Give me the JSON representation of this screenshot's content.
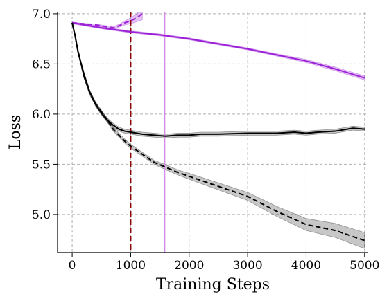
{
  "chart_data": {
    "type": "line",
    "xlabel": "Training Steps",
    "ylabel": "Loss",
    "xlim": [
      -250,
      5050
    ],
    "ylim": [
      4.62,
      7.02
    ],
    "xticks": [
      0,
      1000,
      2000,
      3000,
      4000,
      5000
    ],
    "yticks": [
      5.0,
      5.5,
      6.0,
      6.5,
      7.0
    ],
    "xtick_labels": [
      "0",
      "1000",
      "2000",
      "3000",
      "4000",
      "5000"
    ],
    "ytick_labels": [
      "5.0",
      "5.5",
      "6.0",
      "6.5",
      "7.0"
    ],
    "grid": true,
    "legend": "none",
    "vertical_lines": [
      {
        "x": 1000,
        "color": "#8b0000",
        "style": "dashed"
      },
      {
        "x": 1580,
        "color": "#d58ce8",
        "style": "solid"
      }
    ],
    "series": [
      {
        "color": "#9b1fd6",
        "style": "solid",
        "x": [
          0,
          500,
          1000,
          1500,
          2000,
          2500,
          3000,
          3500,
          4000,
          4500,
          5000
        ],
        "y": [
          6.91,
          6.86,
          6.82,
          6.79,
          6.75,
          6.7,
          6.65,
          6.59,
          6.53,
          6.45,
          6.36
        ],
        "band": [
          0.01,
          0.01,
          0.01,
          0.01,
          0.01,
          0.01,
          0.01,
          0.012,
          0.015,
          0.018,
          0.02
        ]
      },
      {
        "color": "#9b1fd6",
        "style": "dashed",
        "x": [
          0,
          200,
          400,
          600,
          700,
          800,
          900,
          1000,
          1100,
          1200
        ],
        "y": [
          6.91,
          6.9,
          6.89,
          6.87,
          6.86,
          6.88,
          6.91,
          6.93,
          6.96,
          7.0
        ],
        "band": [
          0.005,
          0.005,
          0.008,
          0.01,
          0.012,
          0.015,
          0.02,
          0.03,
          0.04,
          0.06
        ]
      },
      {
        "color": "#000000",
        "style": "solid",
        "x": [
          0,
          50,
          100,
          200,
          300,
          400,
          500,
          600,
          700,
          800,
          900,
          1000,
          1200,
          1400,
          1600,
          1800,
          2000,
          2200,
          2500,
          3000,
          3500,
          3800,
          4000,
          4200,
          4500,
          4800,
          5000
        ],
        "y": [
          6.91,
          6.78,
          6.62,
          6.4,
          6.22,
          6.1,
          6.01,
          5.94,
          5.89,
          5.85,
          5.83,
          5.82,
          5.8,
          5.79,
          5.78,
          5.79,
          5.79,
          5.8,
          5.8,
          5.81,
          5.81,
          5.82,
          5.81,
          5.82,
          5.83,
          5.86,
          5.85
        ],
        "band": [
          0.0,
          0.02,
          0.02,
          0.02,
          0.02,
          0.02,
          0.02,
          0.02,
          0.02,
          0.02,
          0.02,
          0.02,
          0.02,
          0.02,
          0.02,
          0.02,
          0.02,
          0.02,
          0.02,
          0.02,
          0.02,
          0.02,
          0.02,
          0.02,
          0.02,
          0.02,
          0.02
        ]
      },
      {
        "color": "#000000",
        "style": "dashed",
        "x": [
          0,
          50,
          100,
          200,
          300,
          400,
          500,
          600,
          700,
          800,
          900,
          1000,
          1200,
          1400,
          1600,
          1800,
          2000,
          2500,
          3000,
          3500,
          4000,
          4500,
          5000
        ],
        "y": [
          6.91,
          6.78,
          6.63,
          6.38,
          6.21,
          6.1,
          6.02,
          5.94,
          5.85,
          5.79,
          5.73,
          5.68,
          5.6,
          5.52,
          5.47,
          5.42,
          5.38,
          5.28,
          5.18,
          5.03,
          4.9,
          4.84,
          4.74
        ],
        "band": [
          0.0,
          0.02,
          0.02,
          0.02,
          0.02,
          0.02,
          0.02,
          0.02,
          0.02,
          0.02,
          0.02,
          0.02,
          0.02,
          0.02,
          0.025,
          0.025,
          0.03,
          0.035,
          0.04,
          0.05,
          0.06,
          0.07,
          0.08
        ]
      }
    ]
  }
}
